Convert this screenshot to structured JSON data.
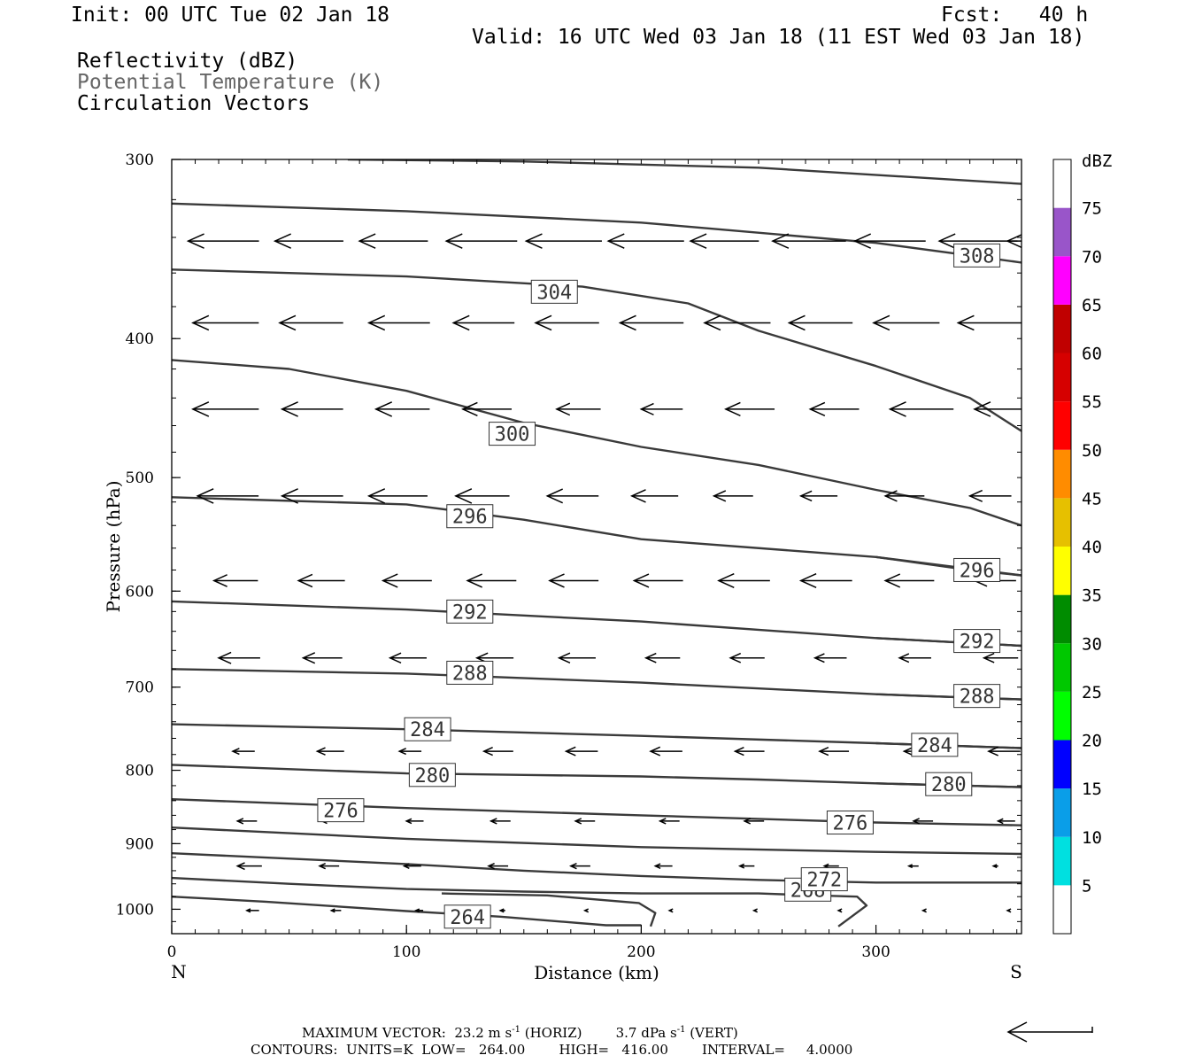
{
  "header": {
    "init": "Init: 00 UTC Tue 02 Jan 18",
    "fcst": "Fcst:   40 h",
    "valid": "Valid: 16 UTC Wed 03 Jan 18 (11 EST Wed 03 Jan 18)",
    "fields": [
      "Reflectivity (dBZ)",
      "Potential Temperature (K)",
      "Circulation Vectors"
    ]
  },
  "colors": {
    "contour": "#3a3a3a",
    "potential_temperature_label": "#666666",
    "colorbar": [
      "#ffffff",
      "#00e0e0",
      "#0a9ee8",
      "#0000ff",
      "#00ff00",
      "#00c800",
      "#008c00",
      "#ffff00",
      "#e6c000",
      "#ff8c00",
      "#ff0000",
      "#d60000",
      "#c00000",
      "#ff00ff",
      "#9955c9",
      "#ffffff"
    ]
  },
  "chart_data": {
    "type": "cross-section",
    "xlabel": "Distance (km)",
    "ylabel": "Pressure (hPa)",
    "xlim": [
      0,
      362
    ],
    "ylim": [
      1040,
      300
    ],
    "y_scale": "log-pressure",
    "xticks": [
      "0",
      "100",
      "200",
      "300"
    ],
    "xtick_values": [
      0,
      100,
      200,
      300
    ],
    "yticks": [
      "300",
      "400",
      "500",
      "600",
      "700",
      "800",
      "900",
      "1000"
    ],
    "ytick_values": [
      300,
      400,
      500,
      600,
      700,
      800,
      900,
      1000
    ],
    "endpoints": {
      "left": "N",
      "right": "S"
    },
    "colorbar": {
      "title": "dBZ",
      "labels": [
        "5",
        "10",
        "15",
        "20",
        "25",
        "30",
        "35",
        "40",
        "45",
        "50",
        "55",
        "60",
        "65",
        "70",
        "75"
      ]
    },
    "contours": [
      {
        "value": 264,
        "label": "264",
        "points": [
          [
            0,
            980
          ],
          [
            40,
            988
          ],
          [
            100,
            1003
          ],
          [
            140,
            1012
          ],
          [
            185,
            1026
          ],
          [
            200,
            1026
          ]
        ],
        "label_at": [
          126,
          1012
        ]
      },
      {
        "value": 264,
        "label": "",
        "points": [
          [
            115,
            975
          ],
          [
            160,
            978
          ],
          [
            199,
            990
          ],
          [
            206,
            1006
          ],
          [
            204,
            1028
          ]
        ]
      },
      {
        "value": 268,
        "label": "268",
        "points": [
          [
            0,
            951
          ],
          [
            50,
            960
          ],
          [
            100,
            968
          ],
          [
            150,
            972
          ],
          [
            200,
            975
          ],
          [
            250,
            975
          ],
          [
            274,
            978
          ],
          [
            292,
            980
          ],
          [
            296,
            994
          ],
          [
            284,
            1028
          ]
        ],
        "label_at": [
          271,
          969
        ]
      },
      {
        "value": 272,
        "label": "272",
        "points": [
          [
            0,
            914
          ],
          [
            100,
            930
          ],
          [
            150,
            940
          ],
          [
            200,
            948
          ],
          [
            250,
            954
          ],
          [
            300,
            958
          ],
          [
            362,
            958
          ]
        ],
        "label_at": [
          278,
          953
        ]
      },
      {
        "value": 276,
        "label": "276",
        "points": [
          [
            0,
            877
          ],
          [
            100,
            893
          ],
          [
            200,
            905
          ],
          [
            300,
            912
          ],
          [
            362,
            915
          ]
        ],
        "label_at": [
          72,
          853
        ]
      },
      {
        "value": 276,
        "label": "276",
        "points": [
          [
            0,
            838
          ],
          [
            100,
            850
          ],
          [
            200,
            860
          ],
          [
            300,
            870
          ],
          [
            362,
            874
          ]
        ],
        "label_at": [
          289,
          870
        ]
      },
      {
        "value": 280,
        "label": "280",
        "points": [
          [
            0,
            793
          ],
          [
            100,
            804
          ],
          [
            150,
            806
          ],
          [
            200,
            808
          ],
          [
            250,
            812
          ],
          [
            300,
            817
          ],
          [
            362,
            822
          ]
        ],
        "label_at": [
          111,
          806
        ]
      },
      {
        "value": 280,
        "label": "280",
        "points": [
          [
            300,
            817
          ],
          [
            362,
            822
          ]
        ],
        "label_at": [
          331,
          818
        ]
      },
      {
        "value": 284,
        "label": "284",
        "points": [
          [
            0,
            743
          ],
          [
            100,
            749
          ],
          [
            200,
            757
          ],
          [
            300,
            766
          ],
          [
            362,
            772
          ]
        ],
        "label_at": [
          109,
          749
        ]
      },
      {
        "value": 284,
        "label": "284",
        "points": [
          [
            300,
            766
          ],
          [
            362,
            772
          ]
        ],
        "label_at": [
          325,
          768
        ]
      },
      {
        "value": 288,
        "label": "288",
        "points": [
          [
            0,
            680
          ],
          [
            100,
            685
          ],
          [
            200,
            695
          ],
          [
            300,
            708
          ],
          [
            362,
            714
          ]
        ],
        "label_at": [
          127,
          684
        ]
      },
      {
        "value": 288,
        "label": "288",
        "points": [
          [
            300,
            708
          ],
          [
            362,
            714
          ]
        ],
        "label_at": [
          343,
          710
        ]
      },
      {
        "value": 292,
        "label": "292",
        "points": [
          [
            0,
            610
          ],
          [
            100,
            618
          ],
          [
            200,
            630
          ],
          [
            300,
            647
          ],
          [
            362,
            655
          ]
        ],
        "label_at": [
          127,
          620
        ]
      },
      {
        "value": 292,
        "label": "292",
        "points": [
          [
            300,
            647
          ],
          [
            362,
            655
          ]
        ],
        "label_at": [
          343,
          650
        ]
      },
      {
        "value": 296,
        "label": "296",
        "points": [
          [
            0,
            516
          ],
          [
            100,
            522
          ],
          [
            150,
            535
          ],
          [
            200,
            552
          ],
          [
            300,
            568
          ],
          [
            340,
            580
          ],
          [
            362,
            585
          ]
        ],
        "label_at": [
          127,
          532
        ]
      },
      {
        "value": 296,
        "label": "296",
        "points": [
          [
            300,
            568
          ],
          [
            362,
            585
          ]
        ],
        "label_at": [
          343,
          580
        ]
      },
      {
        "value": 300,
        "label": "300",
        "points": [
          [
            0,
            414
          ],
          [
            50,
            420
          ],
          [
            100,
            435
          ],
          [
            150,
            458
          ],
          [
            200,
            476
          ],
          [
            250,
            490
          ],
          [
            300,
            510
          ],
          [
            340,
            525
          ],
          [
            362,
            540
          ]
        ],
        "label_at": [
          145,
          466
        ]
      },
      {
        "value": 304,
        "label": "304",
        "points": [
          [
            0,
            358
          ],
          [
            100,
            362
          ],
          [
            175,
            368
          ],
          [
            220,
            378
          ],
          [
            250,
            395
          ],
          [
            300,
            418
          ],
          [
            340,
            440
          ],
          [
            362,
            464
          ]
        ],
        "label_at": [
          163,
          371
        ]
      },
      {
        "value": 308,
        "label": "308",
        "points": [
          [
            0,
            322
          ],
          [
            100,
            326
          ],
          [
            200,
            332
          ],
          [
            300,
            343
          ],
          [
            340,
            350
          ],
          [
            362,
            354
          ]
        ],
        "label_at": [
          343,
          350
        ]
      },
      {
        "value": 312,
        "label": "",
        "points": [
          [
            75,
            300
          ],
          [
            150,
            301
          ],
          [
            250,
            304
          ],
          [
            362,
            312
          ]
        ]
      }
    ],
    "vector_rows": [
      {
        "p": 342,
        "x": [
          7,
          44,
          80,
          117,
          151,
          186,
          221,
          256,
          291,
          327,
          356
        ],
        "u": [
          -29,
          -28,
          -28,
          -29,
          -31,
          -31,
          -28,
          -30,
          -29,
          -32,
          -31
        ],
        "w": [
          0,
          0,
          0,
          0,
          0,
          0,
          0,
          0,
          0,
          0,
          0
        ]
      },
      {
        "p": 390,
        "x": [
          9,
          46,
          84,
          120,
          155,
          191,
          227,
          263,
          299,
          335
        ],
        "u": [
          -27,
          -26,
          -25,
          -25,
          -26,
          -26,
          -27,
          -26,
          -27,
          -27
        ],
        "w": [
          0,
          0,
          0,
          0,
          0,
          0,
          0,
          0,
          0,
          0
        ]
      },
      {
        "p": 448,
        "x": [
          9,
          47,
          87,
          124,
          164,
          200,
          236,
          272,
          306,
          342
        ],
        "u": [
          -27,
          -25,
          -22,
          -20,
          -18,
          -17,
          -20,
          -20,
          -26,
          -27
        ],
        "w": [
          0,
          0,
          0,
          0,
          0,
          0,
          0,
          0,
          0,
          0
        ]
      },
      {
        "p": 515,
        "x": [
          11,
          47,
          84,
          121,
          160,
          196,
          231,
          268,
          304,
          340
        ],
        "u": [
          -25,
          -25,
          -24,
          -22,
          -21,
          -19,
          -16,
          -15,
          -16,
          -17
        ],
        "w": [
          0,
          0,
          0,
          0,
          0,
          0,
          0,
          0,
          0,
          0
        ]
      },
      {
        "p": 590,
        "x": [
          18,
          54,
          90,
          126,
          161,
          197,
          233,
          268,
          304,
          342
        ],
        "u": [
          -18,
          -19,
          -20,
          -20,
          -20,
          -20,
          -21,
          -21,
          -20,
          -17
        ],
        "w": [
          0,
          0,
          0,
          0,
          0,
          0,
          0,
          0,
          0,
          0
        ]
      },
      {
        "p": 668,
        "x": [
          20,
          56,
          93,
          130,
          165,
          202,
          238,
          274,
          310,
          346
        ],
        "u": [
          -17,
          -16,
          -15,
          -15,
          -15,
          -14,
          -14,
          -13,
          -13,
          -14
        ],
        "w": [
          0,
          0,
          0,
          0,
          0,
          0,
          0,
          0,
          0,
          0
        ]
      },
      {
        "p": 776,
        "x": [
          26,
          62,
          97,
          133,
          168,
          204,
          240,
          276,
          312,
          348
        ],
        "u": [
          -9,
          -11,
          -9,
          -12,
          -13,
          -13,
          -12,
          -12,
          -12,
          -13
        ],
        "w": [
          0,
          0,
          0,
          0,
          0,
          0,
          0,
          0,
          0,
          0
        ]
      },
      {
        "p": 868,
        "x": [
          28,
          64,
          100,
          136,
          172,
          208,
          244,
          280,
          316,
          352
        ],
        "u": [
          -8,
          -7,
          -7,
          -8,
          -8,
          -8,
          -8,
          -8,
          -8,
          -7
        ],
        "w": [
          0,
          0,
          0,
          0,
          0,
          0,
          0,
          0,
          0,
          0
        ]
      },
      {
        "p": 933,
        "x": [
          28,
          63,
          99,
          135,
          170,
          206,
          242,
          278,
          314,
          350
        ],
        "u": [
          -10,
          -8,
          -7,
          -8,
          -8,
          -7,
          -6,
          -6,
          -4,
          -2
        ],
        "w": [
          0,
          0,
          0,
          0,
          0,
          0,
          0,
          0,
          0,
          0
        ]
      },
      {
        "p": 1002,
        "x": [
          32,
          68,
          104,
          140,
          176,
          212,
          248,
          284,
          320,
          356
        ],
        "u": [
          -5,
          -4,
          -3,
          -2,
          -1,
          -1,
          -1,
          -1,
          -1,
          -1
        ],
        "w": [
          0,
          0,
          0,
          0,
          0,
          0,
          0,
          0,
          0,
          0
        ]
      }
    ]
  },
  "footer": {
    "max_vector": "MAXIMUM VECTOR:  23.2 m s",
    "max_vector_units": "-1",
    "horiz": " (HORIZ)        3.7 dPa s",
    "vert_units": "-1",
    "vert": " (VERT)",
    "contours": "CONTOURS:  UNITS=K  LOW=   264.00        HIGH=   416.00        INTERVAL=     4.0000"
  }
}
